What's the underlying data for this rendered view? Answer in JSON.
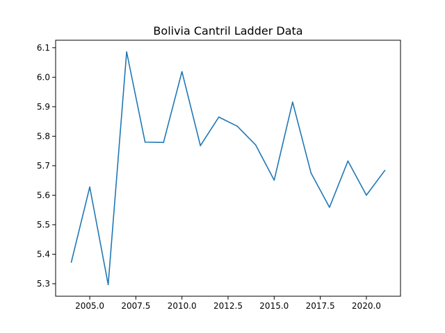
{
  "chart_data": {
    "type": "line",
    "title": "Bolivia Cantril Ladder Data",
    "xlabel": "",
    "ylabel": "",
    "x": [
      2004,
      2005,
      2006,
      2007,
      2008,
      2009,
      2010,
      2011,
      2012,
      2013,
      2014,
      2015,
      2016,
      2017,
      2018,
      2019,
      2020,
      2021
    ],
    "series": [
      {
        "color": "#1f77b4",
        "values": [
          5.373,
          5.628,
          5.297,
          6.086,
          5.78,
          5.779,
          6.019,
          5.768,
          5.865,
          5.834,
          5.77,
          5.651,
          5.916,
          5.675,
          5.559,
          5.716,
          5.6,
          5.684
        ]
      }
    ],
    "xlim": [
      2003.15,
      2021.85
    ],
    "ylim": [
      5.2576,
      6.1254
    ],
    "x_ticks": [
      2005.0,
      2007.5,
      2010.0,
      2012.5,
      2015.0,
      2017.5,
      2020.0
    ],
    "x_tick_labels": [
      "2005.0",
      "2007.5",
      "2010.0",
      "2012.5",
      "2015.0",
      "2017.5",
      "2020.0"
    ],
    "y_ticks": [
      5.3,
      5.4,
      5.5,
      5.6,
      5.7,
      5.8,
      5.9,
      6.0,
      6.1
    ],
    "y_tick_labels": [
      "5.3",
      "5.4",
      "5.5",
      "5.6",
      "5.7",
      "5.8",
      "5.9",
      "6.0",
      "6.1"
    ],
    "grid": false,
    "legend": "none"
  }
}
